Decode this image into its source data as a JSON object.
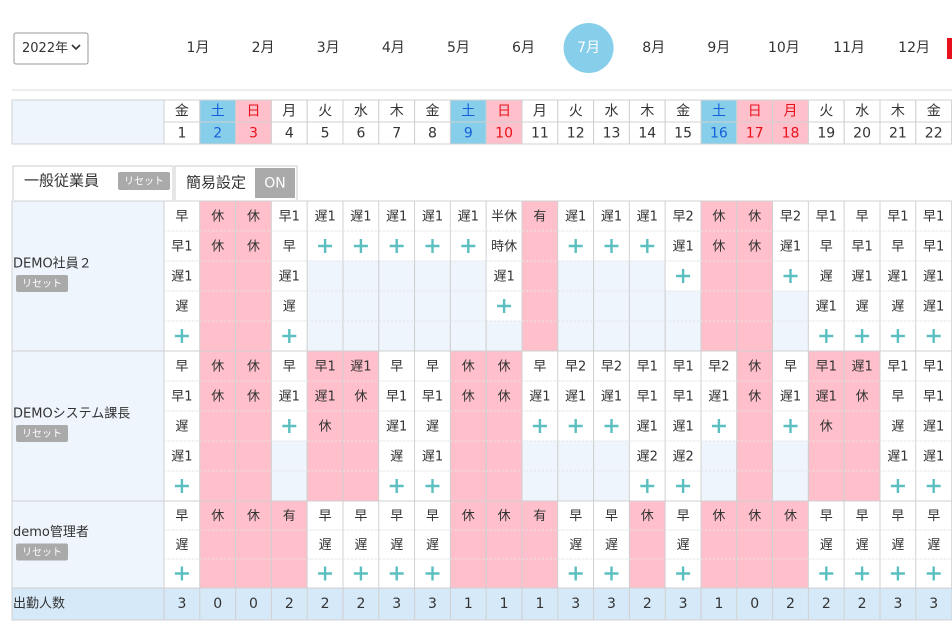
{
  "year_select": "2022年",
  "months": [
    "1月",
    "2月",
    "3月",
    "4月",
    "5月",
    "6月",
    "7月",
    "8月",
    "9月",
    "10月",
    "11月",
    "12月"
  ],
  "active_month_index": 6,
  "calendar": {
    "weekdays": [
      "金",
      "土",
      "日",
      "月",
      "火",
      "水",
      "木",
      "金",
      "土",
      "日",
      "月",
      "火",
      "水",
      "木",
      "金",
      "土",
      "日",
      "月",
      "火",
      "水",
      "木",
      "金"
    ],
    "days": [
      1,
      2,
      3,
      4,
      5,
      6,
      7,
      8,
      9,
      10,
      11,
      12,
      13,
      14,
      15,
      16,
      17,
      18,
      19,
      20,
      21,
      22
    ],
    "header_colors": [
      null,
      "#87ceeb",
      "#ffc0cb",
      null,
      null,
      null,
      null,
      null,
      "#87ceeb",
      "#ffc0cb",
      null,
      null,
      null,
      null,
      null,
      "#87ceeb",
      "#ffc0cb",
      "#ffc0cb",
      null,
      null,
      null,
      null
    ],
    "header_text_colors": [
      null,
      "#1560d8",
      "#e8101a",
      null,
      null,
      null,
      null,
      null,
      "#1560d8",
      "#e8101a",
      null,
      null,
      null,
      null,
      null,
      "#1560d8",
      "#e8101a",
      "#e8101a",
      null,
      null,
      null,
      null
    ]
  },
  "tabs": {
    "group": "一般従業員",
    "group_reset": "リセット",
    "simple": "簡易設定",
    "simple_state": "ON"
  },
  "employees": [
    {
      "name": "DEMO社員２",
      "reset": "リセット",
      "days": [
        {
          "shifts": [
            "早",
            "早1",
            "遅1",
            "遅"
          ],
          "off": false
        },
        {
          "shifts": [
            "休",
            "休"
          ],
          "off": true
        },
        {
          "shifts": [
            "休",
            "休"
          ],
          "off": true
        },
        {
          "shifts": [
            "早1",
            "早",
            "遅1",
            "遅"
          ],
          "off": false
        },
        {
          "shifts": [
            "遅1"
          ],
          "off": false
        },
        {
          "shifts": [
            "遅1"
          ],
          "off": false
        },
        {
          "shifts": [
            "遅1"
          ],
          "off": false
        },
        {
          "shifts": [
            "遅1"
          ],
          "off": false
        },
        {
          "shifts": [
            "遅1"
          ],
          "off": false
        },
        {
          "shifts": [
            "半休",
            "時休",
            "遅1"
          ],
          "off": false
        },
        {
          "shifts": [
            "有"
          ],
          "off": true
        },
        {
          "shifts": [
            "遅1"
          ],
          "off": false
        },
        {
          "shifts": [
            "遅1"
          ],
          "off": false
        },
        {
          "shifts": [
            "遅1"
          ],
          "off": false
        },
        {
          "shifts": [
            "早2",
            "遅1"
          ],
          "off": false
        },
        {
          "shifts": [
            "休",
            "休"
          ],
          "off": true
        },
        {
          "shifts": [
            "休",
            "休"
          ],
          "off": true
        },
        {
          "shifts": [
            "早2",
            "遅1"
          ],
          "off": false
        },
        {
          "shifts": [
            "早1",
            "早",
            "遅",
            "遅1"
          ],
          "off": false
        },
        {
          "shifts": [
            "早",
            "早1",
            "遅1",
            "遅"
          ],
          "off": false
        },
        {
          "shifts": [
            "早1",
            "早",
            "遅1",
            "遅"
          ],
          "off": false
        },
        {
          "shifts": [
            "早1",
            "早1",
            "遅1",
            "遅1"
          ],
          "off": false
        }
      ]
    },
    {
      "name": "DEMOシステム課長",
      "reset": "リセット",
      "days": [
        {
          "shifts": [
            "早",
            "早1",
            "遅",
            "遅1"
          ],
          "off": false
        },
        {
          "shifts": [
            "休",
            "休"
          ],
          "off": true
        },
        {
          "shifts": [
            "休",
            "休"
          ],
          "off": true
        },
        {
          "shifts": [
            "早",
            "遅1"
          ],
          "off": false
        },
        {
          "shifts": [
            "早1",
            "遅1",
            "休"
          ],
          "off": true
        },
        {
          "shifts": [
            "遅1",
            "休"
          ],
          "off": true
        },
        {
          "shifts": [
            "早",
            "早1",
            "遅1",
            "遅"
          ],
          "off": false
        },
        {
          "shifts": [
            "早",
            "早1",
            "遅",
            "遅1"
          ],
          "off": false
        },
        {
          "shifts": [
            "休",
            "休"
          ],
          "off": true
        },
        {
          "shifts": [
            "休",
            "休"
          ],
          "off": true
        },
        {
          "shifts": [
            "早",
            "遅1"
          ],
          "off": false
        },
        {
          "shifts": [
            "早2",
            "遅1"
          ],
          "off": false
        },
        {
          "shifts": [
            "早2",
            "遅1"
          ],
          "off": false
        },
        {
          "shifts": [
            "早1",
            "早1",
            "遅1",
            "遅2"
          ],
          "off": false
        },
        {
          "shifts": [
            "早1",
            "早1",
            "遅1",
            "遅2"
          ],
          "off": false
        },
        {
          "shifts": [
            "早2",
            "遅1"
          ],
          "off": false
        },
        {
          "shifts": [
            "休",
            "休"
          ],
          "off": true
        },
        {
          "shifts": [
            "早",
            "遅1"
          ],
          "off": false
        },
        {
          "shifts": [
            "早1",
            "遅1",
            "休"
          ],
          "off": true
        },
        {
          "shifts": [
            "遅1",
            "休"
          ],
          "off": true
        },
        {
          "shifts": [
            "早1",
            "早",
            "遅",
            "遅1"
          ],
          "off": false
        },
        {
          "shifts": [
            "早1",
            "早1",
            "遅1",
            "遅1"
          ],
          "off": false
        }
      ]
    },
    {
      "name": "demo管理者",
      "reset": "リセット",
      "days": [
        {
          "shifts": [
            "早",
            "遅"
          ],
          "off": false
        },
        {
          "shifts": [
            "休"
          ],
          "off": true
        },
        {
          "shifts": [
            "休"
          ],
          "off": true
        },
        {
          "shifts": [
            "有"
          ],
          "off": true
        },
        {
          "shifts": [
            "早",
            "遅"
          ],
          "off": false
        },
        {
          "shifts": [
            "早",
            "遅"
          ],
          "off": false
        },
        {
          "shifts": [
            "早",
            "遅"
          ],
          "off": false
        },
        {
          "shifts": [
            "早",
            "遅"
          ],
          "off": false
        },
        {
          "shifts": [
            "休"
          ],
          "off": true
        },
        {
          "shifts": [
            "休"
          ],
          "off": true
        },
        {
          "shifts": [
            "有"
          ],
          "off": true
        },
        {
          "shifts": [
            "早",
            "遅"
          ],
          "off": false
        },
        {
          "shifts": [
            "早",
            "遅"
          ],
          "off": false
        },
        {
          "shifts": [
            "休"
          ],
          "off": true
        },
        {
          "shifts": [
            "早",
            "遅"
          ],
          "off": false
        },
        {
          "shifts": [
            "休"
          ],
          "off": true
        },
        {
          "shifts": [
            "休"
          ],
          "off": true
        },
        {
          "shifts": [
            "休"
          ],
          "off": true
        },
        {
          "shifts": [
            "早",
            "遅"
          ],
          "off": false
        },
        {
          "shifts": [
            "早",
            "遅"
          ],
          "off": false
        },
        {
          "shifts": [
            "早",
            "遅"
          ],
          "off": false
        },
        {
          "shifts": [
            "早",
            "遅"
          ],
          "off": false
        }
      ]
    }
  ],
  "total": {
    "label": "出勤人数",
    "values": [
      3,
      0,
      0,
      2,
      2,
      2,
      3,
      3,
      1,
      1,
      1,
      3,
      3,
      2,
      3,
      1,
      0,
      2,
      2,
      2,
      3,
      3
    ]
  }
}
